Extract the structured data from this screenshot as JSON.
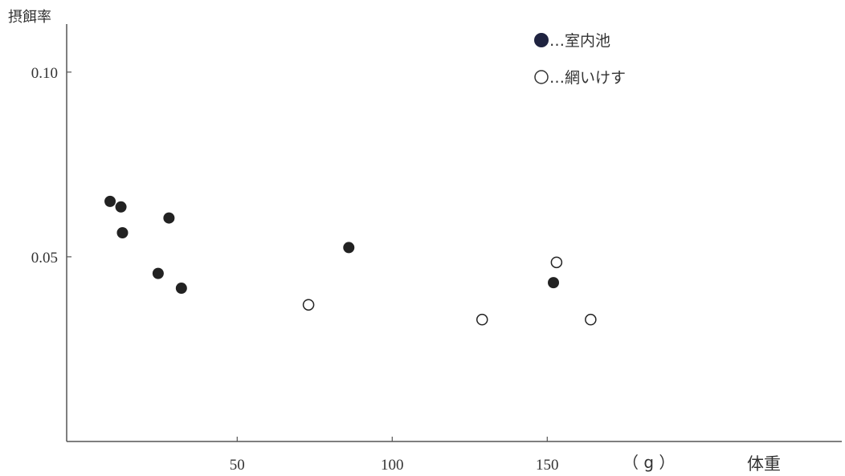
{
  "chart_data": {
    "type": "scatter",
    "ylabel": "摂餌率",
    "xlabel": "体重",
    "x_unit": "（ g ）",
    "xlim": [
      -5,
      245
    ],
    "ylim": [
      0,
      0.113
    ],
    "x_ticks": [
      {
        "value": 50,
        "label": "50"
      },
      {
        "value": 100,
        "label": "100"
      },
      {
        "value": 150,
        "label": "150"
      }
    ],
    "y_ticks": [
      {
        "value": 0.05,
        "label": "0.05"
      },
      {
        "value": 0.1,
        "label": "0.10"
      }
    ],
    "grid": false,
    "legend_position": "top-right",
    "series": [
      {
        "name": "…室内池",
        "marker": "filled-circle",
        "color": "#222222",
        "legend_color": "#1f2340",
        "points": [
          {
            "x": 9,
            "y": 0.065
          },
          {
            "x": 12.5,
            "y": 0.0635
          },
          {
            "x": 13,
            "y": 0.0565
          },
          {
            "x": 24.5,
            "y": 0.0455
          },
          {
            "x": 28,
            "y": 0.0605
          },
          {
            "x": 32,
            "y": 0.0415
          },
          {
            "x": 86,
            "y": 0.0525
          },
          {
            "x": 152,
            "y": 0.043
          }
        ]
      },
      {
        "name": "…網いけす",
        "marker": "open-circle",
        "color": "#222222",
        "points": [
          {
            "x": 73,
            "y": 0.037
          },
          {
            "x": 129,
            "y": 0.033
          },
          {
            "x": 153,
            "y": 0.0485
          },
          {
            "x": 164,
            "y": 0.033
          }
        ]
      }
    ]
  }
}
